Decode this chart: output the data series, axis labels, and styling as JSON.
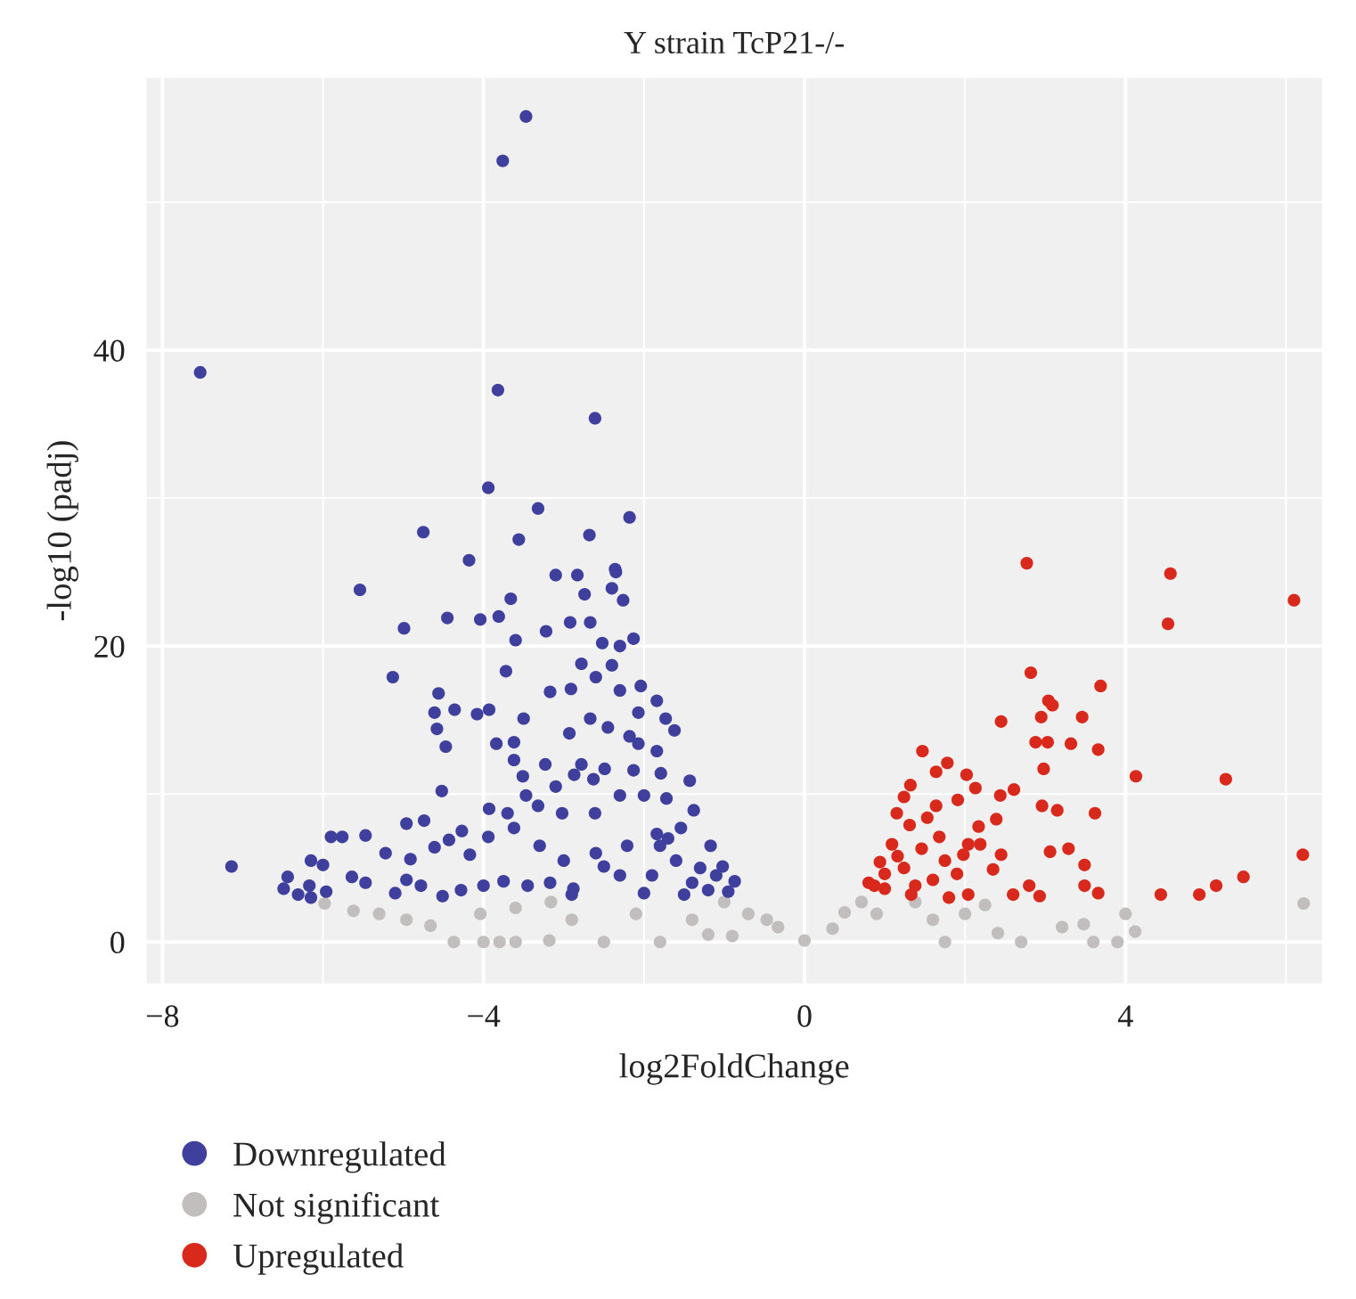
{
  "chart_data": {
    "type": "scatter",
    "title": "Y strain TcP21-/-",
    "xlabel": "log2FoldChange",
    "ylabel": "-log10 (padj)",
    "xlim": [
      -8.2,
      6.45
    ],
    "ylim": [
      -2.8,
      58.4
    ],
    "xticks": [
      {
        "value": -8,
        "label": "−8"
      },
      {
        "value": -4,
        "label": "−4"
      },
      0,
      4
    ],
    "yticks": [
      0,
      20,
      40
    ],
    "grid": true,
    "legend": "bottom left",
    "marker": "circle",
    "series": [
      {
        "name": "Downregulated",
        "color": "#3f3f9e",
        "x": [
          -3.47,
          -3.76,
          -7.53,
          -3.82,
          -2.61,
          -3.94,
          -3.32,
          -2.18,
          -4.75,
          -3.56,
          -2.68,
          -4.18,
          -2.36,
          -3.1,
          -2.83,
          -2.35,
          -5.54,
          -2.74,
          -2.4,
          -2.26,
          -3.66,
          -4.99,
          -4.45,
          -4.04,
          -3.81,
          -3.22,
          -2.92,
          -2.67,
          -3.6,
          -2.13,
          -2.52,
          -2.3,
          -5.13,
          -3.72,
          -2.78,
          -2.4,
          -2.6,
          -4.56,
          -3.17,
          -2.91,
          -2.3,
          -2.04,
          -4.36,
          -4.61,
          -4.08,
          -3.93,
          -3.5,
          -2.67,
          -2.07,
          -1.84,
          -4.58,
          -2.45,
          -1.73,
          -1.62,
          -4.47,
          -3.84,
          -3.62,
          -2.93,
          -2.18,
          -2.07,
          -1.84,
          -3.62,
          -3.23,
          -2.78,
          -2.49,
          -2.13,
          -1.79,
          -3.51,
          -2.87,
          -2.63,
          -1.43,
          -4.52,
          -3.47,
          -3.1,
          -2.3,
          -2.0,
          -1.72,
          -3.93,
          -3.7,
          -3.32,
          -3.02,
          -2.61,
          -1.38,
          -5.76,
          -5.47,
          -4.96,
          -4.74,
          -5.22,
          -5.9,
          -4.91,
          -4.61,
          -4.27,
          -3.94,
          -3.62,
          -4.17,
          -4.43,
          -7.14,
          -6.15,
          -6.0,
          -6.44,
          -6.49,
          -6.31,
          -6.17,
          -6.15,
          -5.96,
          -5.64,
          -5.47,
          -5.1,
          -4.96,
          -4.78,
          -4.51,
          -4.28,
          -4.0,
          -3.75,
          -3.45,
          -3.17,
          -2.88,
          -2.5,
          -2.21,
          -1.84,
          -1.54,
          -1.17,
          -1.02,
          -0.87,
          -0.95,
          -1.9,
          -1.6,
          -1.4,
          -1.2,
          -1.8,
          -1.5,
          -2.0,
          -1.3,
          -1.1,
          -1.7,
          -2.3,
          -2.6,
          -3.0,
          -3.3,
          -2.9
        ],
        "values": [
          55.8,
          52.8,
          38.5,
          37.3,
          35.4,
          30.7,
          29.3,
          28.7,
          27.7,
          27.2,
          27.5,
          25.8,
          25.2,
          24.8,
          24.8,
          25.0,
          23.8,
          23.5,
          23.9,
          23.1,
          23.2,
          21.2,
          21.9,
          21.8,
          22.0,
          21.0,
          21.6,
          21.6,
          20.4,
          20.5,
          20.2,
          20.0,
          17.9,
          18.3,
          18.8,
          18.7,
          17.9,
          16.8,
          16.9,
          17.1,
          17.0,
          17.3,
          15.7,
          15.5,
          15.4,
          15.7,
          15.1,
          15.1,
          15.5,
          16.3,
          14.4,
          14.5,
          15.1,
          14.3,
          13.2,
          13.4,
          13.5,
          14.1,
          13.9,
          13.4,
          12.9,
          12.3,
          12.0,
          12.0,
          11.7,
          11.6,
          11.4,
          11.2,
          11.3,
          11.0,
          10.9,
          10.2,
          9.9,
          10.5,
          9.9,
          9.9,
          9.7,
          9.0,
          8.7,
          9.2,
          8.7,
          8.7,
          8.9,
          7.1,
          7.2,
          8.0,
          8.2,
          6.0,
          7.1,
          5.6,
          6.4,
          7.5,
          7.1,
          7.7,
          5.9,
          6.9,
          5.1,
          5.5,
          5.2,
          4.4,
          3.6,
          3.2,
          3.8,
          3.0,
          3.4,
          4.4,
          4.0,
          3.3,
          4.2,
          3.8,
          3.1,
          3.5,
          3.8,
          4.1,
          3.8,
          4.0,
          3.6,
          5.1,
          6.5,
          7.3,
          7.7,
          6.5,
          5.1,
          4.1,
          3.4,
          4.5,
          5.5,
          4.0,
          3.5,
          6.5,
          3.2,
          3.3,
          5.0,
          4.5,
          7.0,
          4.5,
          6.0,
          5.5,
          6.5,
          3.2
        ]
      },
      {
        "name": "Not significant",
        "color": "#c2bebe",
        "x": [
          -5.98,
          -5.62,
          -5.3,
          -4.96,
          -4.66,
          -4.37,
          -4.0,
          -3.6,
          -3.18,
          -4.04,
          -3.6,
          -3.16,
          -2.9,
          -2.5,
          -2.1,
          -1.8,
          -1.4,
          -1.0,
          -0.7,
          -0.33,
          0.0,
          -0.47,
          0.35,
          0.71,
          0.9,
          1.38,
          1.6,
          1.75,
          2.0,
          2.25,
          2.41,
          2.7,
          3.21,
          3.48,
          3.6,
          3.9,
          4.0,
          4.12,
          6.22,
          -3.8,
          -1.2,
          0.5,
          -0.9
        ],
        "values": [
          2.6,
          2.1,
          1.9,
          1.5,
          1.1,
          0.0,
          0.0,
          0.0,
          0.1,
          1.9,
          2.3,
          2.7,
          1.5,
          0.0,
          1.9,
          0.0,
          1.5,
          2.7,
          1.9,
          1.0,
          0.1,
          1.5,
          0.9,
          2.7,
          1.9,
          2.7,
          1.5,
          0.0,
          1.9,
          2.5,
          0.6,
          0.0,
          1.0,
          1.2,
          0.0,
          0.0,
          1.9,
          0.7,
          2.6,
          0.0,
          0.5,
          2.0,
          0.4
        ]
      },
      {
        "name": "Upregulated",
        "color": "#d9281c",
        "x": [
          2.77,
          4.56,
          4.53,
          6.1,
          2.82,
          3.69,
          3.04,
          3.09,
          2.45,
          2.95,
          3.46,
          2.88,
          3.03,
          3.32,
          3.66,
          1.47,
          1.78,
          1.64,
          2.02,
          4.13,
          5.25,
          2.98,
          1.32,
          2.13,
          2.44,
          2.61,
          1.91,
          2.96,
          3.15,
          3.62,
          2.39,
          1.64,
          2.17,
          1.15,
          2.04,
          2.19,
          3.06,
          3.29,
          2.45,
          3.49,
          2.35,
          6.21,
          5.47,
          5.13,
          4.92,
          4.44,
          3.49,
          3.66,
          2.8,
          2.93,
          2.6,
          2.04,
          1.8,
          1.24,
          1.09,
          0.87,
          1.0,
          1.31,
          1.46,
          1.68,
          1.75,
          1.9,
          1.38,
          1.24,
          1.0,
          0.8,
          1.53,
          1.16,
          1.98,
          1.6,
          1.33,
          0.94
        ],
        "values": [
          25.6,
          24.9,
          21.5,
          23.1,
          18.2,
          17.3,
          16.3,
          16.0,
          14.9,
          15.2,
          15.2,
          13.5,
          13.5,
          13.4,
          13.0,
          12.9,
          12.1,
          11.5,
          11.3,
          11.2,
          11.0,
          11.7,
          10.6,
          10.4,
          9.9,
          10.3,
          9.6,
          9.2,
          8.9,
          8.7,
          8.3,
          9.2,
          7.8,
          8.7,
          6.6,
          6.6,
          6.1,
          6.3,
          5.9,
          5.2,
          4.9,
          5.9,
          4.4,
          3.8,
          3.2,
          3.2,
          3.8,
          3.3,
          3.8,
          3.1,
          3.2,
          3.2,
          3.0,
          5.0,
          6.6,
          3.8,
          4.6,
          7.9,
          6.3,
          7.1,
          5.5,
          4.6,
          3.8,
          9.8,
          3.6,
          4.0,
          8.4,
          5.8,
          5.9,
          4.2,
          3.2,
          5.4
        ]
      }
    ]
  }
}
